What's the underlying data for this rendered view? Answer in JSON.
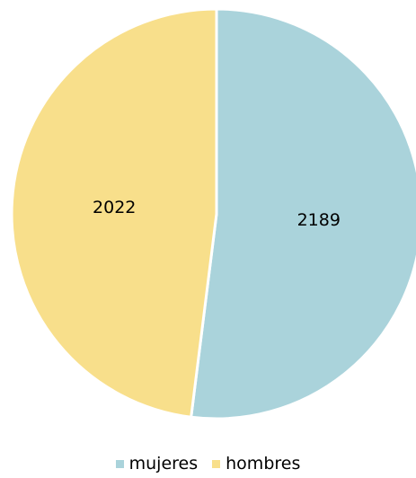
{
  "chart_data": {
    "type": "pie",
    "categories": [
      "mujeres",
      "hombres"
    ],
    "values": [
      2189,
      2022
    ],
    "colors": [
      "#aad3db",
      "#f8df8b"
    ],
    "data_labels": [
      "2189",
      "2022"
    ],
    "start_angle_deg": 0,
    "direction": "clockwise",
    "legend_position": "bottom",
    "title": ""
  },
  "legend": {
    "items": [
      {
        "label": "mujeres",
        "color": "#aad3db"
      },
      {
        "label": "hombres",
        "color": "#f8df8b"
      }
    ]
  }
}
